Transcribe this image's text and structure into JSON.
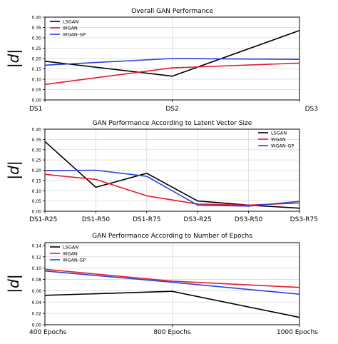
{
  "chart_data": [
    {
      "type": "line",
      "title": "Overall GAN Performance",
      "ylabel": "|d|",
      "xlabel": "",
      "categories": [
        "DS1",
        "DS2",
        "DS3"
      ],
      "yticks": [
        "0.00",
        "0.05",
        "0.10",
        "0.15",
        "0.20",
        "0.25",
        "0.30",
        "0.35",
        "0.40"
      ],
      "ylim": [
        0,
        0.4
      ],
      "grid": true,
      "legend": "top-left",
      "series": [
        {
          "name": "LSGAN",
          "color": "#000000",
          "values": [
            0.187,
            0.115,
            0.335
          ]
        },
        {
          "name": "WGAN",
          "color": "#e8192c",
          "values": [
            0.075,
            0.155,
            0.178
          ]
        },
        {
          "name": "WGAN-GP",
          "color": "#2a3fe8",
          "values": [
            0.168,
            0.2,
            0.196
          ]
        }
      ]
    },
    {
      "type": "line",
      "title": "GAN Performance According to Latent Vector Size",
      "ylabel": "|d|",
      "xlabel": "",
      "categories": [
        "DS1-R25",
        "DS1-R50",
        "DS1-R75",
        "DS3-R25",
        "DS3-R50",
        "DS3-R75"
      ],
      "yticks": [
        "0.00",
        "0.05",
        "0.10",
        "0.15",
        "0.20",
        "0.25",
        "0.30",
        "0.35",
        "0.40"
      ],
      "ylim": [
        0,
        0.4
      ],
      "grid": true,
      "legend": "top-right",
      "series": [
        {
          "name": "LSGAN",
          "color": "#000000",
          "values": [
            0.34,
            0.117,
            0.185,
            0.05,
            0.03,
            0.015
          ]
        },
        {
          "name": "WGAN",
          "color": "#e8192c",
          "values": [
            0.18,
            0.155,
            0.075,
            0.035,
            0.03,
            0.04
          ]
        },
        {
          "name": "WGAN-GP",
          "color": "#2a3fe8",
          "values": [
            0.198,
            0.2,
            0.17,
            0.03,
            0.025,
            0.048
          ]
        }
      ]
    },
    {
      "type": "line",
      "title": "GAN Performance According to Number of Epochs",
      "ylabel": "|d|",
      "xlabel": "",
      "categories": [
        "400 Epochs",
        "800 Epochs",
        "1000 Epochs"
      ],
      "yticks": [
        "0.00",
        "0.02",
        "0.04",
        "0.06",
        "0.08",
        "0.10",
        "0.12",
        "0.14"
      ],
      "ylim": [
        0,
        0.145
      ],
      "grid": true,
      "legend": "top-left",
      "series": [
        {
          "name": "LSGAN",
          "color": "#000000",
          "values": [
            0.052,
            0.059,
            0.013
          ]
        },
        {
          "name": "WGAN",
          "color": "#e8192c",
          "values": [
            0.098,
            0.077,
            0.066
          ]
        },
        {
          "name": "WGAN-GP",
          "color": "#2a3fe8",
          "values": [
            0.095,
            0.075,
            0.054
          ]
        }
      ]
    }
  ]
}
